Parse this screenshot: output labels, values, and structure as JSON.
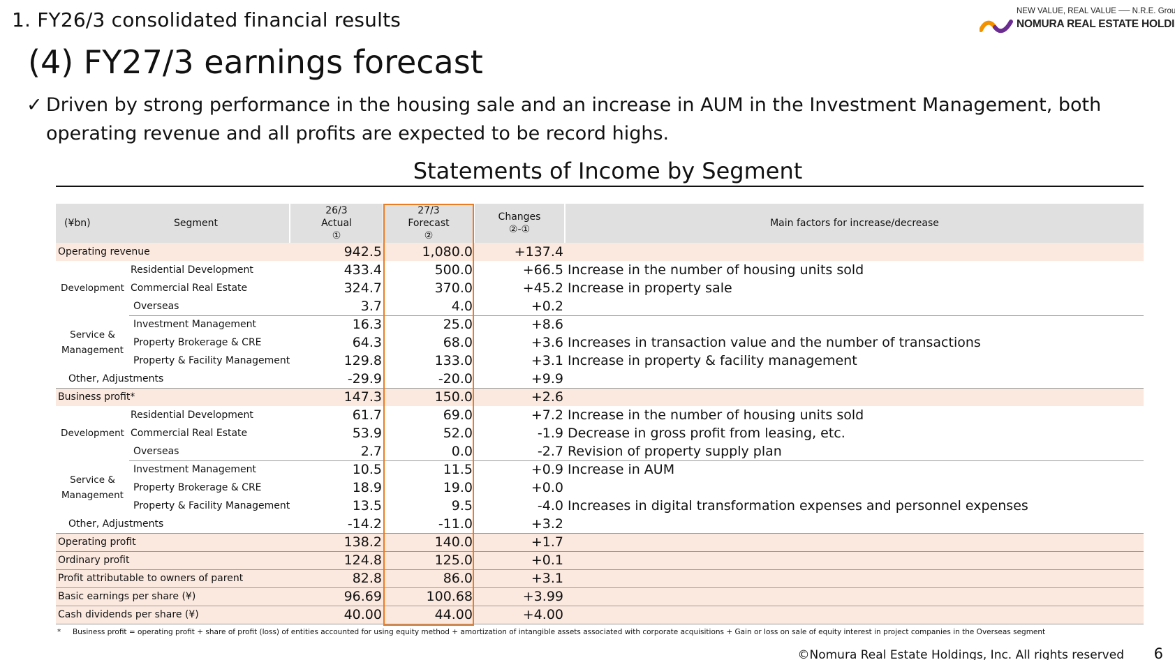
{
  "header": {
    "section_title": "1. FY26/3 consolidated financial results",
    "main_title": "(4) FY27/3 earnings forecast"
  },
  "logo": {
    "tagline": "NEW VALUE, REAL VALUE ── N.R.E. Group",
    "name": "NOMURA REAL ESTATE HOLDINGS",
    "colors": {
      "orange": "#f39200",
      "purple": "#6b2c91"
    }
  },
  "bullet": {
    "check": "✓",
    "text": "Driven by strong performance in the housing sale and an increase in AUM in the Investment Management, both operating revenue and all profits are expected to be record highs."
  },
  "table": {
    "title": "Statements of Income by Segment",
    "head": {
      "unit": "(¥bn)",
      "segment": "Segment",
      "actual_line1": "26/3",
      "actual_line2": "Actual",
      "actual_line3": "①",
      "forecast_line1": "27/3",
      "forecast_line2": "Forecast",
      "forecast_line3": "②",
      "changes_line1": "Changes",
      "changes_line2": "②-①",
      "factors": "Main factors for increase/decrease"
    },
    "groups": {
      "development": "Development",
      "service_management": "Service & Management"
    },
    "rows": [
      {
        "label": "Operating revenue",
        "actual": "942.5",
        "forecast": "1,080.0",
        "change": "+137.4",
        "factor": ""
      },
      {
        "label": "Residential Development",
        "actual": "433.4",
        "forecast": "500.0",
        "change": "+66.5",
        "factor": "Increase in the number of housing units sold"
      },
      {
        "label": "Commercial Real Estate",
        "actual": "324.7",
        "forecast": "370.0",
        "change": "+45.2",
        "factor": "Increase in property sale"
      },
      {
        "label": "Overseas",
        "actual": "3.7",
        "forecast": "4.0",
        "change": "+0.2",
        "factor": ""
      },
      {
        "label": "Investment Management",
        "actual": "16.3",
        "forecast": "25.0",
        "change": "+8.6",
        "factor": ""
      },
      {
        "label": "Property Brokerage & CRE",
        "actual": "64.3",
        "forecast": "68.0",
        "change": "+3.6",
        "factor": "Increases in transaction value and the number of transactions"
      },
      {
        "label": "Property & Facility Management",
        "actual": "129.8",
        "forecast": "133.0",
        "change": "+3.1",
        "factor": "Increase in property & facility management"
      },
      {
        "label": "Other, Adjustments",
        "actual": "-29.9",
        "forecast": "-20.0",
        "change": "+9.9",
        "factor": ""
      },
      {
        "label": "Business profit*",
        "actual": "147.3",
        "forecast": "150.0",
        "change": "+2.6",
        "factor": ""
      },
      {
        "label": "Residential Development",
        "actual": "61.7",
        "forecast": "69.0",
        "change": "+7.2",
        "factor": "Increase  in the number of housing units sold"
      },
      {
        "label": "Commercial Real Estate",
        "actual": "53.9",
        "forecast": "52.0",
        "change": "-1.9",
        "factor": "Decrease in gross profit from leasing, etc."
      },
      {
        "label": "Overseas",
        "actual": "2.7",
        "forecast": "0.0",
        "change": "-2.7",
        "factor": "Revision of property supply plan"
      },
      {
        "label": "Investment Management",
        "actual": "10.5",
        "forecast": "11.5",
        "change": "+0.9",
        "factor": "Increase in AUM"
      },
      {
        "label": "Property Brokerage & CRE",
        "actual": "18.9",
        "forecast": "19.0",
        "change": "+0.0",
        "factor": ""
      },
      {
        "label": "Property & Facility Management",
        "actual": "13.5",
        "forecast": "9.5",
        "change": "-4.0",
        "factor": "Increases in digital transformation expenses and personnel expenses"
      },
      {
        "label": "Other, Adjustments",
        "actual": "-14.2",
        "forecast": "-11.0",
        "change": "+3.2",
        "factor": ""
      },
      {
        "label": "Operating profit",
        "actual": "138.2",
        "forecast": "140.0",
        "change": "+1.7",
        "factor": ""
      },
      {
        "label": "Ordinary profit",
        "actual": "124.8",
        "forecast": "125.0",
        "change": "+0.1",
        "factor": ""
      },
      {
        "label": "Profit attributable to owners of parent",
        "actual": "82.8",
        "forecast": "86.0",
        "change": "+3.1",
        "factor": ""
      },
      {
        "label": "Basic earnings per share (¥)",
        "actual": "96.69",
        "forecast": "100.68",
        "change": "+3.99",
        "factor": ""
      },
      {
        "label": "Cash dividends per share (¥)",
        "actual": "40.00",
        "forecast": "44.00",
        "change": "+4.00",
        "factor": ""
      }
    ],
    "highlight_color": "#fbe9df",
    "forecast_box_color": "#ec7c22"
  },
  "footnote": {
    "mark": "*",
    "text": "Business profit = operating profit + share of profit (loss) of entities accounted for using equity method + amortization of intangible assets associated with corporate acquisitions + Gain or loss on sale of equity interest in project companies in the Overseas segment"
  },
  "footer": {
    "copyright": "©Nomura Real Estate Holdings, Inc. All rights reserved",
    "page_number": "6"
  }
}
